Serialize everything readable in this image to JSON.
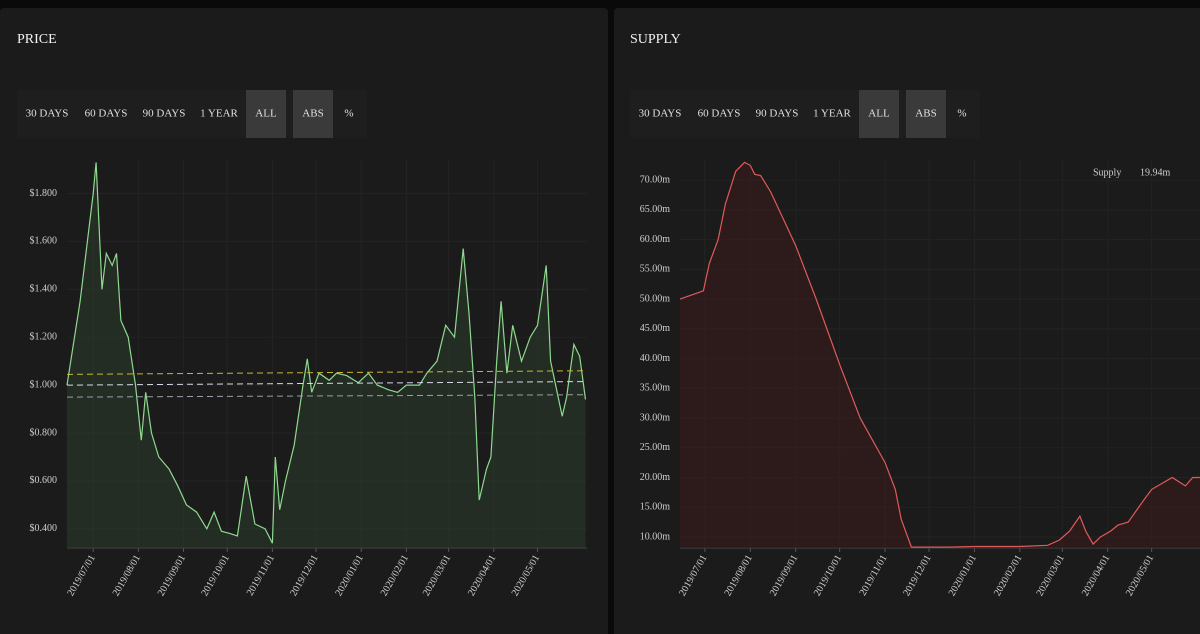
{
  "chart_data": [
    {
      "type": "line",
      "title": "PRICE",
      "buttons": [
        "30 DAYS",
        "60 DAYS",
        "90 DAYS",
        "1 YEAR",
        "ALL",
        "ABS",
        "%"
      ],
      "active_buttons": [
        4,
        5
      ],
      "xlim": [
        "2019/06/13",
        "2020/06/04"
      ],
      "xticks": [
        "2019/07/01",
        "2019/08/01",
        "2019/09/01",
        "2019/10/01",
        "2019/11/01",
        "2019/12/01",
        "2020/01/01",
        "2020/02/01",
        "2020/03/01",
        "2020/04/01",
        "2020/05/01"
      ],
      "ylim": [
        0.32,
        1.94
      ],
      "yticks": [
        {
          "value": 0.4,
          "label": "$0.400"
        },
        {
          "value": 0.6,
          "label": "$0.600"
        },
        {
          "value": 0.8,
          "label": "$0.800"
        },
        {
          "value": 1.0,
          "label": "$1.000"
        },
        {
          "value": 1.2,
          "label": "$1.200"
        },
        {
          "value": 1.4,
          "label": "$1.400"
        },
        {
          "value": 1.6,
          "label": "$1.600"
        },
        {
          "value": 1.8,
          "label": "$1.800"
        }
      ],
      "grid": true,
      "reference_lines": [
        {
          "values": [
            1.045,
            1.06
          ],
          "color": "#c9b630"
        },
        {
          "values": [
            1.0,
            1.015
          ],
          "color": "#d8d8e8"
        },
        {
          "values": [
            0.95,
            0.96
          ],
          "color": "#9aa0a6"
        }
      ],
      "series": [
        {
          "color": "#8fd98f",
          "fill": "#2a3a2a",
          "x": [
            "2019/06/13",
            "2019/06/22",
            "2019/07/01",
            "2019/07/03",
            "2019/07/07",
            "2019/07/10",
            "2019/07/14",
            "2019/07/17",
            "2019/07/20",
            "2019/07/25",
            "2019/07/30",
            "2019/08/03",
            "2019/08/06",
            "2019/08/10",
            "2019/08/15",
            "2019/08/22",
            "2019/08/28",
            "2019/09/03",
            "2019/09/10",
            "2019/09/17",
            "2019/09/22",
            "2019/09/27",
            "2019/10/03",
            "2019/10/08",
            "2019/10/14",
            "2019/10/20",
            "2019/10/27",
            "2019/11/01",
            "2019/11/03",
            "2019/11/06",
            "2019/11/10",
            "2019/11/16",
            "2019/11/22",
            "2019/11/25",
            "2019/11/28",
            "2019/12/03",
            "2019/12/10",
            "2019/12/15",
            "2019/12/22",
            "2019/12/30",
            "2020/01/06",
            "2020/01/12",
            "2020/01/20",
            "2020/01/26",
            "2020/02/01",
            "2020/02/10",
            "2020/02/15",
            "2020/02/22",
            "2020/02/28",
            "2020/03/05",
            "2020/03/11",
            "2020/03/15",
            "2020/03/19",
            "2020/03/22",
            "2020/03/27",
            "2020/03/30",
            "2020/04/03",
            "2020/04/06",
            "2020/04/10",
            "2020/04/14",
            "2020/04/20",
            "2020/04/26",
            "2020/05/01",
            "2020/05/07",
            "2020/05/10",
            "2020/05/18",
            "2020/05/21",
            "2020/05/26",
            "2020/05/30",
            "2020/06/03"
          ],
          "values": [
            1.0,
            1.35,
            1.8,
            1.93,
            1.4,
            1.55,
            1.5,
            1.55,
            1.27,
            1.2,
            1.0,
            0.77,
            0.97,
            0.8,
            0.7,
            0.65,
            0.58,
            0.5,
            0.47,
            0.4,
            0.47,
            0.39,
            0.38,
            0.37,
            0.62,
            0.42,
            0.4,
            0.34,
            0.7,
            0.48,
            0.6,
            0.75,
            1.0,
            1.11,
            0.97,
            1.05,
            1.02,
            1.05,
            1.04,
            1.01,
            1.05,
            1.0,
            0.98,
            0.97,
            1.0,
            1.0,
            1.05,
            1.1,
            1.25,
            1.2,
            1.57,
            1.3,
            0.95,
            0.52,
            0.65,
            0.7,
            1.1,
            1.35,
            1.05,
            1.25,
            1.1,
            1.2,
            1.25,
            1.5,
            1.1,
            0.87,
            0.95,
            1.17,
            1.12,
            0.94
          ]
        }
      ]
    },
    {
      "type": "line",
      "title": "SUPPLY",
      "buttons": [
        "30 DAYS",
        "60 DAYS",
        "90 DAYS",
        "1 YEAR",
        "ALL",
        "ABS",
        "%"
      ],
      "active_buttons": [
        4,
        5
      ],
      "xlim": [
        "2019/06/14",
        "2020/06/03"
      ],
      "xticks": [
        "2019/07/01",
        "2019/08/01",
        "2019/09/01",
        "2019/10/01",
        "2019/11/01",
        "2019/12/01",
        "2020/01/01",
        "2020/02/01",
        "2020/03/01",
        "2020/04/01",
        "2020/05/01"
      ],
      "ylim": [
        8.15,
        73.4
      ],
      "yticks": [
        {
          "value": 10,
          "label": "10.00m"
        },
        {
          "value": 15,
          "label": "15.00m"
        },
        {
          "value": 20,
          "label": "20.00m"
        },
        {
          "value": 25,
          "label": "25.00m"
        },
        {
          "value": 30,
          "label": "30.00m"
        },
        {
          "value": 35,
          "label": "35.00m"
        },
        {
          "value": 40,
          "label": "40.00m"
        },
        {
          "value": 45,
          "label": "45.00m"
        },
        {
          "value": 50,
          "label": "50.00m"
        },
        {
          "value": 55,
          "label": "55.00m"
        },
        {
          "value": 60,
          "label": "60.00m"
        },
        {
          "value": 65,
          "label": "65.00m"
        },
        {
          "value": 70,
          "label": "70.00m"
        }
      ],
      "grid": true,
      "legend_value_label": "19.94m",
      "series": [
        {
          "name": "Supply",
          "color": "#e05a5a",
          "fill": "#3a1c1c",
          "x": [
            "2019/06/14",
            "2019/06/30",
            "2019/07/04",
            "2019/07/10",
            "2019/07/15",
            "2019/07/22",
            "2019/07/28",
            "2019/08/01",
            "2019/08/04",
            "2019/08/08",
            "2019/08/15",
            "2019/09/01",
            "2019/09/15",
            "2019/10/01",
            "2019/10/15",
            "2019/11/01",
            "2019/11/08",
            "2019/11/12",
            "2019/11/19",
            "2019/12/15",
            "2020/01/01",
            "2020/02/01",
            "2020/02/20",
            "2020/02/28",
            "2020/03/06",
            "2020/03/13",
            "2020/03/17",
            "2020/03/22",
            "2020/03/27",
            "2020/04/03",
            "2020/04/08",
            "2020/04/15",
            "2020/04/25",
            "2020/05/01",
            "2020/05/15",
            "2020/05/24",
            "2020/05/29",
            "2020/06/03"
          ],
          "values": [
            50.0,
            51.4,
            56,
            60,
            66,
            71.5,
            73,
            72.5,
            71,
            70.8,
            68,
            59,
            50,
            39,
            30,
            22.5,
            18,
            13,
            8.3,
            8.3,
            8.4,
            8.4,
            8.6,
            9.5,
            11,
            13.5,
            11,
            8.8,
            10,
            11,
            12,
            12.5,
            16,
            18,
            20,
            18.6,
            20,
            20
          ]
        }
      ]
    }
  ]
}
